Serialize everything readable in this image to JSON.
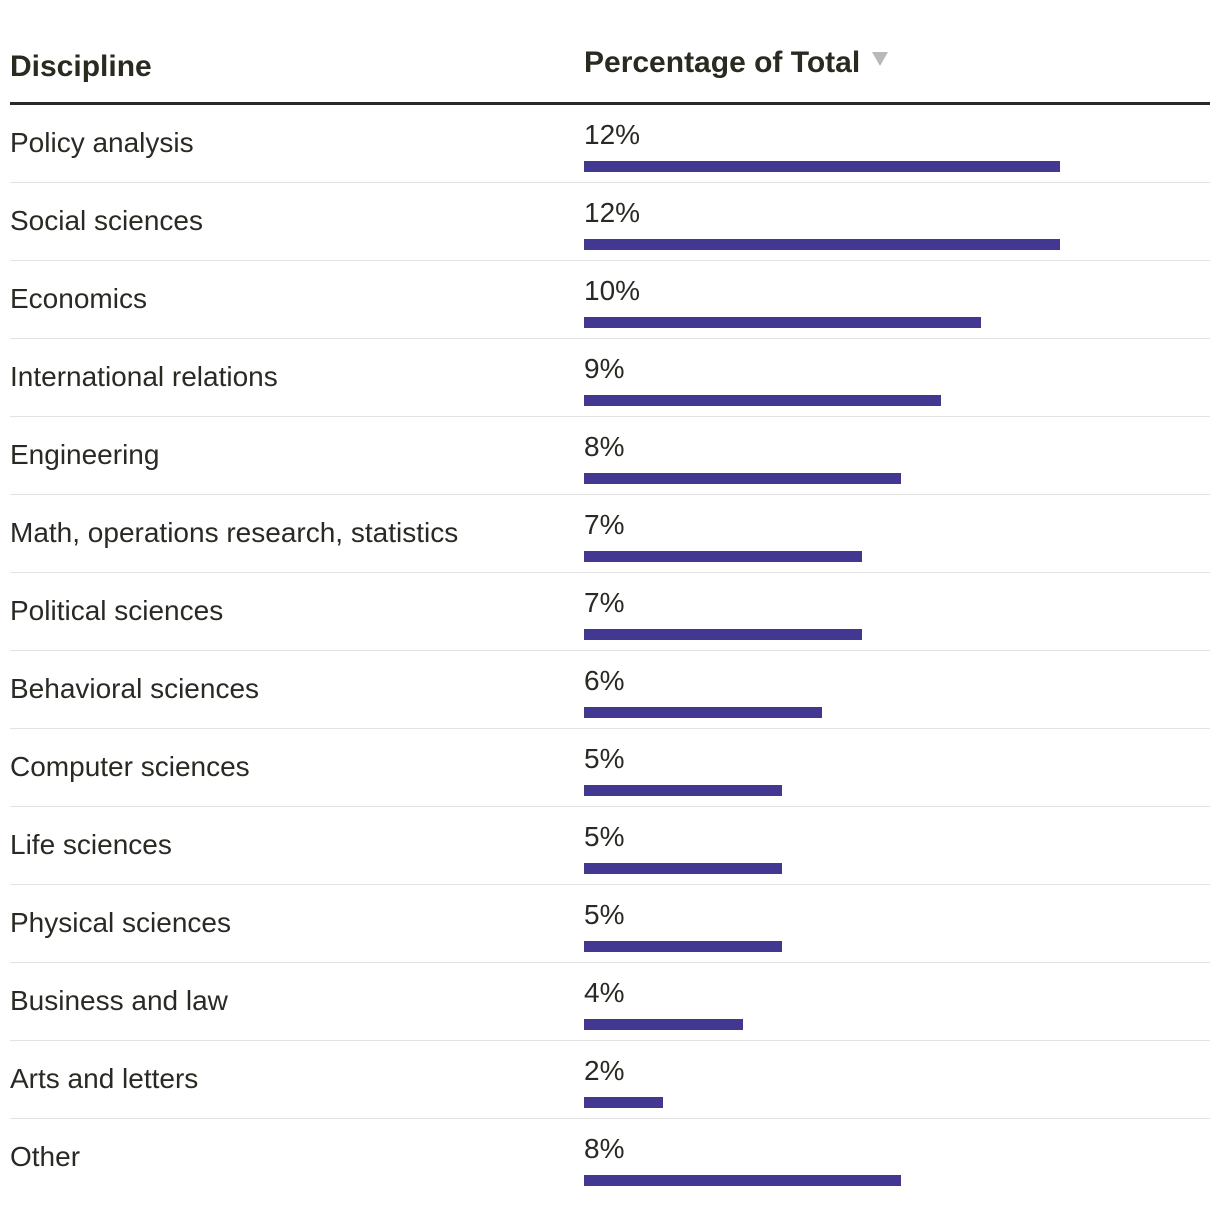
{
  "headers": {
    "discipline": "Discipline",
    "percentage": "Percentage of Total"
  },
  "icons": {
    "sort": "sort-descending-triangle-icon"
  },
  "colors": {
    "bar": "#433891",
    "header_rule": "#2a2a2a",
    "row_divider": "#e2e2e2",
    "sort_icon": "#b8b8b8"
  },
  "chart_data": {
    "type": "bar",
    "orientation": "horizontal",
    "categories": [
      "Policy analysis",
      "Social sciences",
      "Economics",
      "International relations",
      "Engineering",
      "Math, operations research, statistics",
      "Political sciences",
      "Behavioral sciences",
      "Computer sciences",
      "Life sciences",
      "Physical sciences",
      "Business and law",
      "Arts and letters",
      "Other"
    ],
    "values": [
      12,
      12,
      10,
      9,
      8,
      7,
      7,
      6,
      5,
      5,
      5,
      4,
      2,
      8
    ],
    "value_labels": [
      "12%",
      "12%",
      "10%",
      "9%",
      "8%",
      "7%",
      "7%",
      "6%",
      "5%",
      "5%",
      "5%",
      "4%",
      "2%",
      "8%"
    ],
    "xlim": [
      0,
      12
    ]
  }
}
